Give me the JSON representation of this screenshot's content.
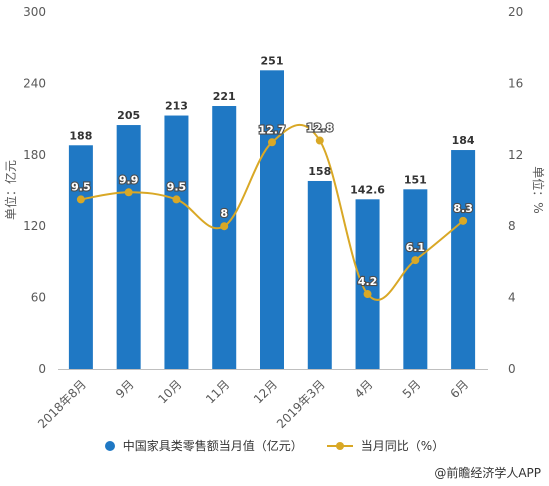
{
  "chart_data": {
    "type": "bar+line",
    "categories": [
      "2018年8月",
      "9月",
      "10月",
      "11月",
      "12月",
      "2019年3月",
      "4月",
      "5月",
      "6月"
    ],
    "series": [
      {
        "name": "中国家具类零售额当月值（亿元）",
        "type": "bar",
        "axis": "left",
        "color": "#1f78c4",
        "values": [
          188,
          205,
          213,
          221,
          251,
          158,
          142.6,
          151,
          184
        ]
      },
      {
        "name": "当月同比（%）",
        "type": "line",
        "axis": "right",
        "color": "#d9a826",
        "values": [
          9.5,
          9.9,
          9.5,
          8,
          12.7,
          12.8,
          4.2,
          6.1,
          8.3
        ]
      }
    ],
    "ylabel": "单位：亿元",
    "y2label": "单位：%",
    "ylim": [
      0,
      300
    ],
    "y2lim": [
      0,
      20
    ],
    "yticks": [
      0,
      60,
      120,
      180,
      240,
      300
    ],
    "y2ticks": [
      0,
      4,
      8,
      12,
      16,
      20
    ],
    "legend_position": "bottom"
  },
  "source": "@前瞻经济学人APP"
}
